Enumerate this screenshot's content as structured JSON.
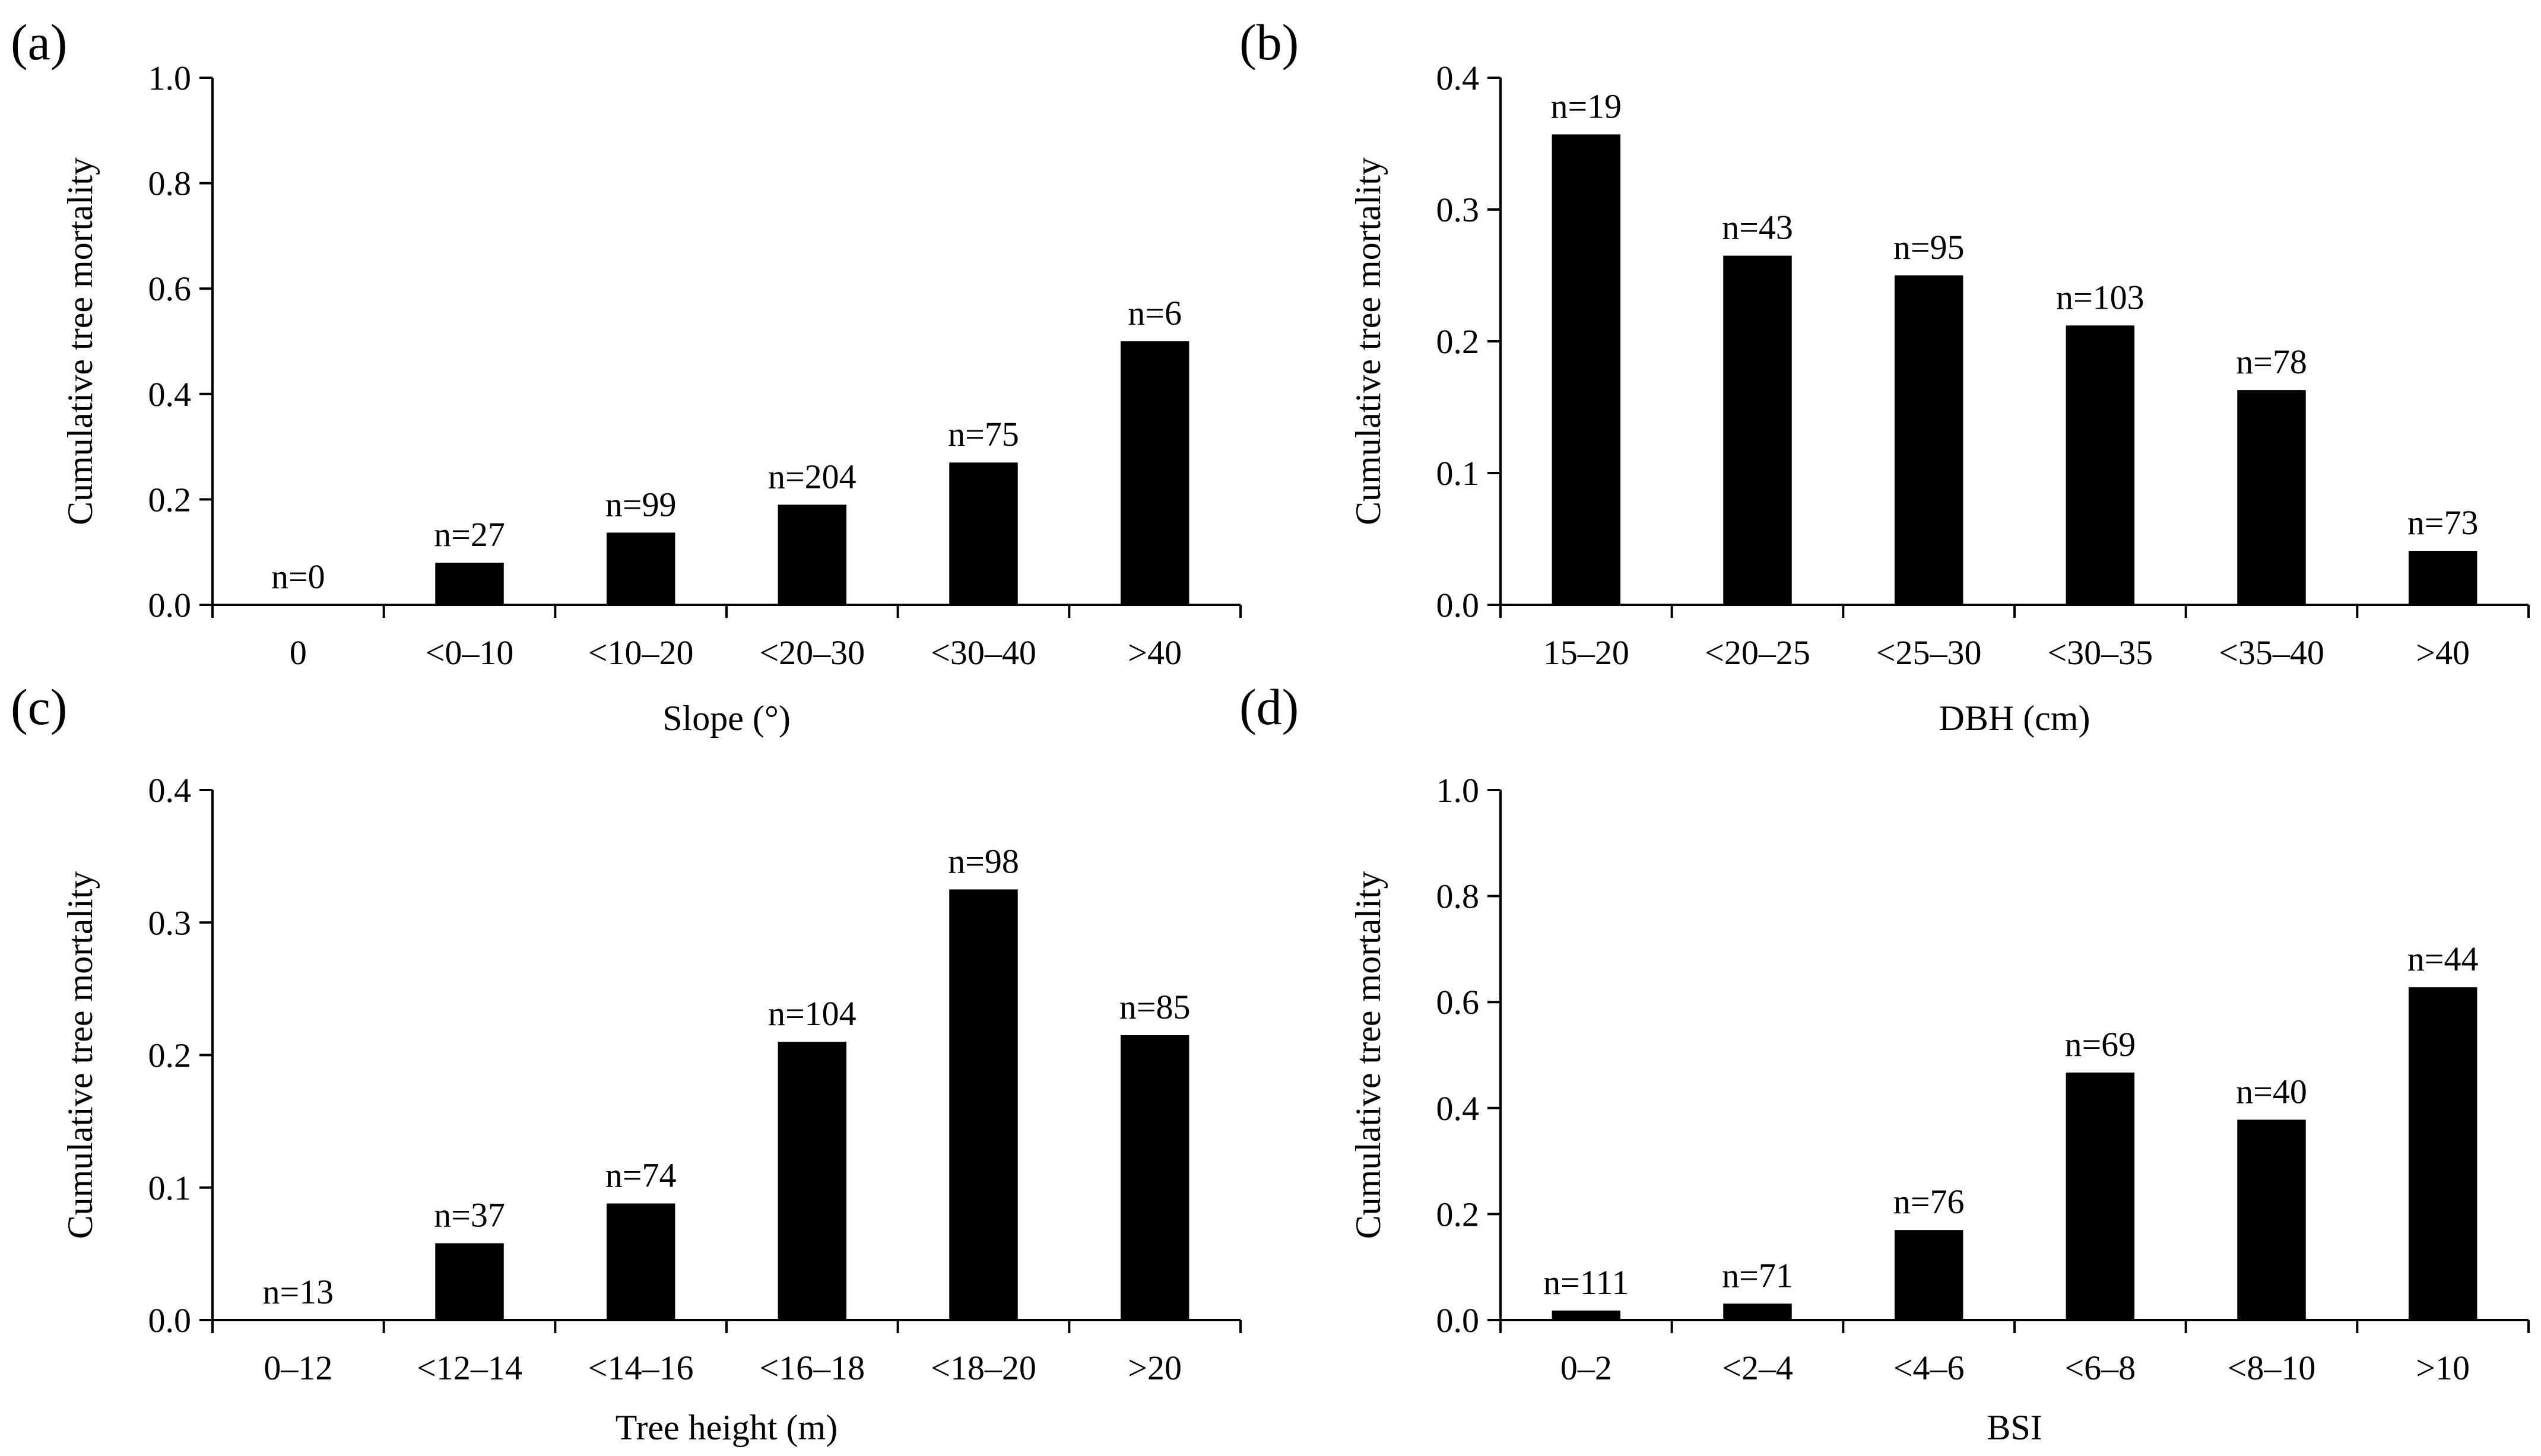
{
  "chart_data": [
    {
      "type": "bar",
      "panel": "(a)",
      "xlabel": "Slope (°)",
      "ylabel": "Cumulative tree mortality",
      "ylim": [
        0,
        1.0
      ],
      "yticks": [
        0.0,
        0.2,
        0.4,
        0.6,
        0.8,
        1.0
      ],
      "ytick_labels": [
        "0.0",
        "0.2",
        "0.4",
        "0.6",
        "0.8",
        "1.0"
      ],
      "categories": [
        "0",
        "<0–10",
        "<10–20",
        "<20–30",
        "<30–40",
        ">40"
      ],
      "values": [
        0,
        0.08,
        0.137,
        0.19,
        0.27,
        0.5
      ],
      "n_labels": [
        "n=0",
        "n=27",
        "n=99",
        "n=204",
        "n=75",
        "n=6"
      ],
      "bar_color": "#000000"
    },
    {
      "type": "bar",
      "panel": "(b)",
      "xlabel": "DBH (cm)",
      "ylabel": "Cumulative tree mortality",
      "ylim": [
        0,
        0.4
      ],
      "yticks": [
        0.0,
        0.1,
        0.2,
        0.3,
        0.4
      ],
      "ytick_labels": [
        "0.0",
        "0.1",
        "0.2",
        "0.3",
        "0.4"
      ],
      "categories": [
        "15–20",
        "<20–25",
        "<25–30",
        "<30–35",
        "<35–40",
        ">40"
      ],
      "values": [
        0.357,
        0.265,
        0.25,
        0.212,
        0.163,
        0.041
      ],
      "n_labels": [
        "n=19",
        "n=43",
        "n=95",
        "n=103",
        "n=78",
        "n=73"
      ],
      "bar_color": "#000000"
    },
    {
      "type": "bar",
      "panel": "(c)",
      "xlabel": "Tree height (m)",
      "ylabel": "Cumulative tree mortality",
      "ylim": [
        0,
        0.4
      ],
      "yticks": [
        0.0,
        0.1,
        0.2,
        0.3,
        0.4
      ],
      "ytick_labels": [
        "0.0",
        "0.1",
        "0.2",
        "0.3",
        "0.4"
      ],
      "categories": [
        "0–12",
        "<12–14",
        "<14–16",
        "<16–18",
        "<18–20",
        ">20"
      ],
      "values": [
        0,
        0.058,
        0.088,
        0.21,
        0.325,
        0.215
      ],
      "n_labels": [
        "n=13",
        "n=37",
        "n=74",
        "n=104",
        "n=98",
        "n=85"
      ],
      "bar_color": "#000000"
    },
    {
      "type": "bar",
      "panel": "(d)",
      "xlabel": "BSI",
      "ylabel": "Cumulative tree mortality",
      "ylim": [
        0,
        1.0
      ],
      "yticks": [
        0.0,
        0.2,
        0.4,
        0.6,
        0.8,
        1.0
      ],
      "ytick_labels": [
        "0.0",
        "0.2",
        "0.4",
        "0.6",
        "0.8",
        "1.0"
      ],
      "categories": [
        "0–2",
        "<2–4",
        "<4–6",
        "<6–8",
        "<8–10",
        ">10"
      ],
      "values": [
        0.018,
        0.031,
        0.17,
        0.467,
        0.378,
        0.628
      ],
      "n_labels": [
        "n=111",
        "n=71",
        "n=76",
        "n=69",
        "n=40",
        "n=44"
      ],
      "bar_color": "#000000"
    }
  ]
}
